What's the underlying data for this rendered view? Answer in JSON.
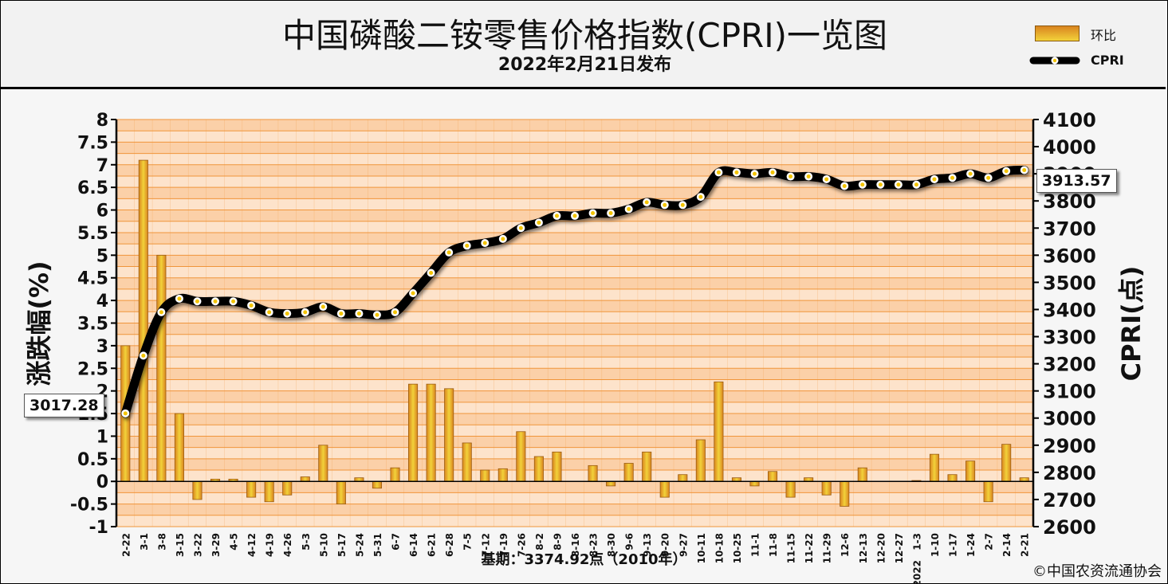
{
  "header": {
    "title": "中国磷酸二铵零售价格指数(CPRI)一览图",
    "subtitle": "2022年2月21日发布"
  },
  "legend": {
    "bar_label": "环比",
    "line_label": "CPRI"
  },
  "footer": {
    "base_note": "基期：3374.92点（2010年）",
    "copyright": "©中国农资流通协会"
  },
  "callouts": {
    "first_value": "3017.28",
    "last_value": "3913.57"
  },
  "colors": {
    "band_light": "#fde3cb",
    "band_dark": "#fbd0a8",
    "grid": "#f0953a",
    "bar_dark": "#d9841f",
    "bar_light": "#f2d23a",
    "line": "#000000",
    "marker": "#f3c400"
  },
  "chart_data": {
    "type": "bar+line",
    "categories": [
      "2-22",
      "3-1",
      "3-8",
      "3-15",
      "3-22",
      "3-29",
      "4-5",
      "4-12",
      "4-19",
      "4-26",
      "5-3",
      "5-10",
      "5-17",
      "5-24",
      "5-31",
      "6-7",
      "6-14",
      "6-21",
      "6-28",
      "7-5",
      "7-12",
      "7-19",
      "7-26",
      "8-2",
      "8-9",
      "8-16",
      "8-23",
      "8-30",
      "9-6",
      "9-13",
      "9-20",
      "9-27",
      "10-11",
      "10-18",
      "10-25",
      "11-1",
      "11-8",
      "11-15",
      "11-22",
      "11-29",
      "12-6",
      "12-13",
      "12-20",
      "12-27",
      "1-3",
      "1-10",
      "1-17",
      "1-24",
      "2-7",
      "2-14",
      "2-21"
    ],
    "year_marker": {
      "category": "1-3",
      "label": "2022"
    },
    "series": [
      {
        "name": "环比",
        "type": "bar",
        "axis": "left",
        "values": [
          3.0,
          7.1,
          5.0,
          1.5,
          -0.4,
          0.05,
          0.05,
          -0.35,
          -0.45,
          -0.3,
          0.1,
          0.8,
          -0.5,
          0.08,
          -0.15,
          0.3,
          2.15,
          2.15,
          2.05,
          0.85,
          0.25,
          0.28,
          1.1,
          0.55,
          0.65,
          0,
          0.35,
          -0.1,
          0.4,
          0.65,
          -0.35,
          0.15,
          0.92,
          2.2,
          0.08,
          -0.1,
          0.22,
          -0.35,
          0.08,
          -0.3,
          -0.55,
          0.3,
          0,
          0,
          0.02,
          0.6,
          0.15,
          0.45,
          -0.45,
          0.82,
          0.08
        ]
      },
      {
        "name": "CPRI",
        "type": "line",
        "axis": "right",
        "values": [
          3017.28,
          3230,
          3390,
          3440,
          3430,
          3430,
          3430,
          3415,
          3390,
          3385,
          3390,
          3410,
          3385,
          3385,
          3380,
          3390,
          3460,
          3535,
          3610,
          3635,
          3645,
          3660,
          3700,
          3720,
          3745,
          3745,
          3755,
          3755,
          3770,
          3795,
          3785,
          3785,
          3815,
          3905,
          3905,
          3900,
          3905,
          3890,
          3890,
          3880,
          3855,
          3860,
          3860,
          3860,
          3860,
          3880,
          3885,
          3900,
          3885,
          3910,
          3913.57
        ]
      }
    ],
    "left_axis": {
      "label": "涨跌幅(%)",
      "min": -1,
      "max": 8,
      "step": 0.5,
      "ticks": [
        "-1",
        "-0.5",
        "0",
        "0.5",
        "1",
        "1.5",
        "2",
        "2.5",
        "3",
        "3.5",
        "4",
        "4.5",
        "5",
        "5.5",
        "6",
        "6.5",
        "7",
        "7.5",
        "8"
      ]
    },
    "right_axis": {
      "label": "CPRI(点)",
      "min": 2600,
      "max": 4100,
      "step": 100,
      "ticks": [
        "2600",
        "2700",
        "2800",
        "2900",
        "3000",
        "3100",
        "3200",
        "3300",
        "3400",
        "3500",
        "3600",
        "3700",
        "3800",
        "3900",
        "4000",
        "4100"
      ]
    },
    "grid": true,
    "legend_position": "top-right"
  }
}
